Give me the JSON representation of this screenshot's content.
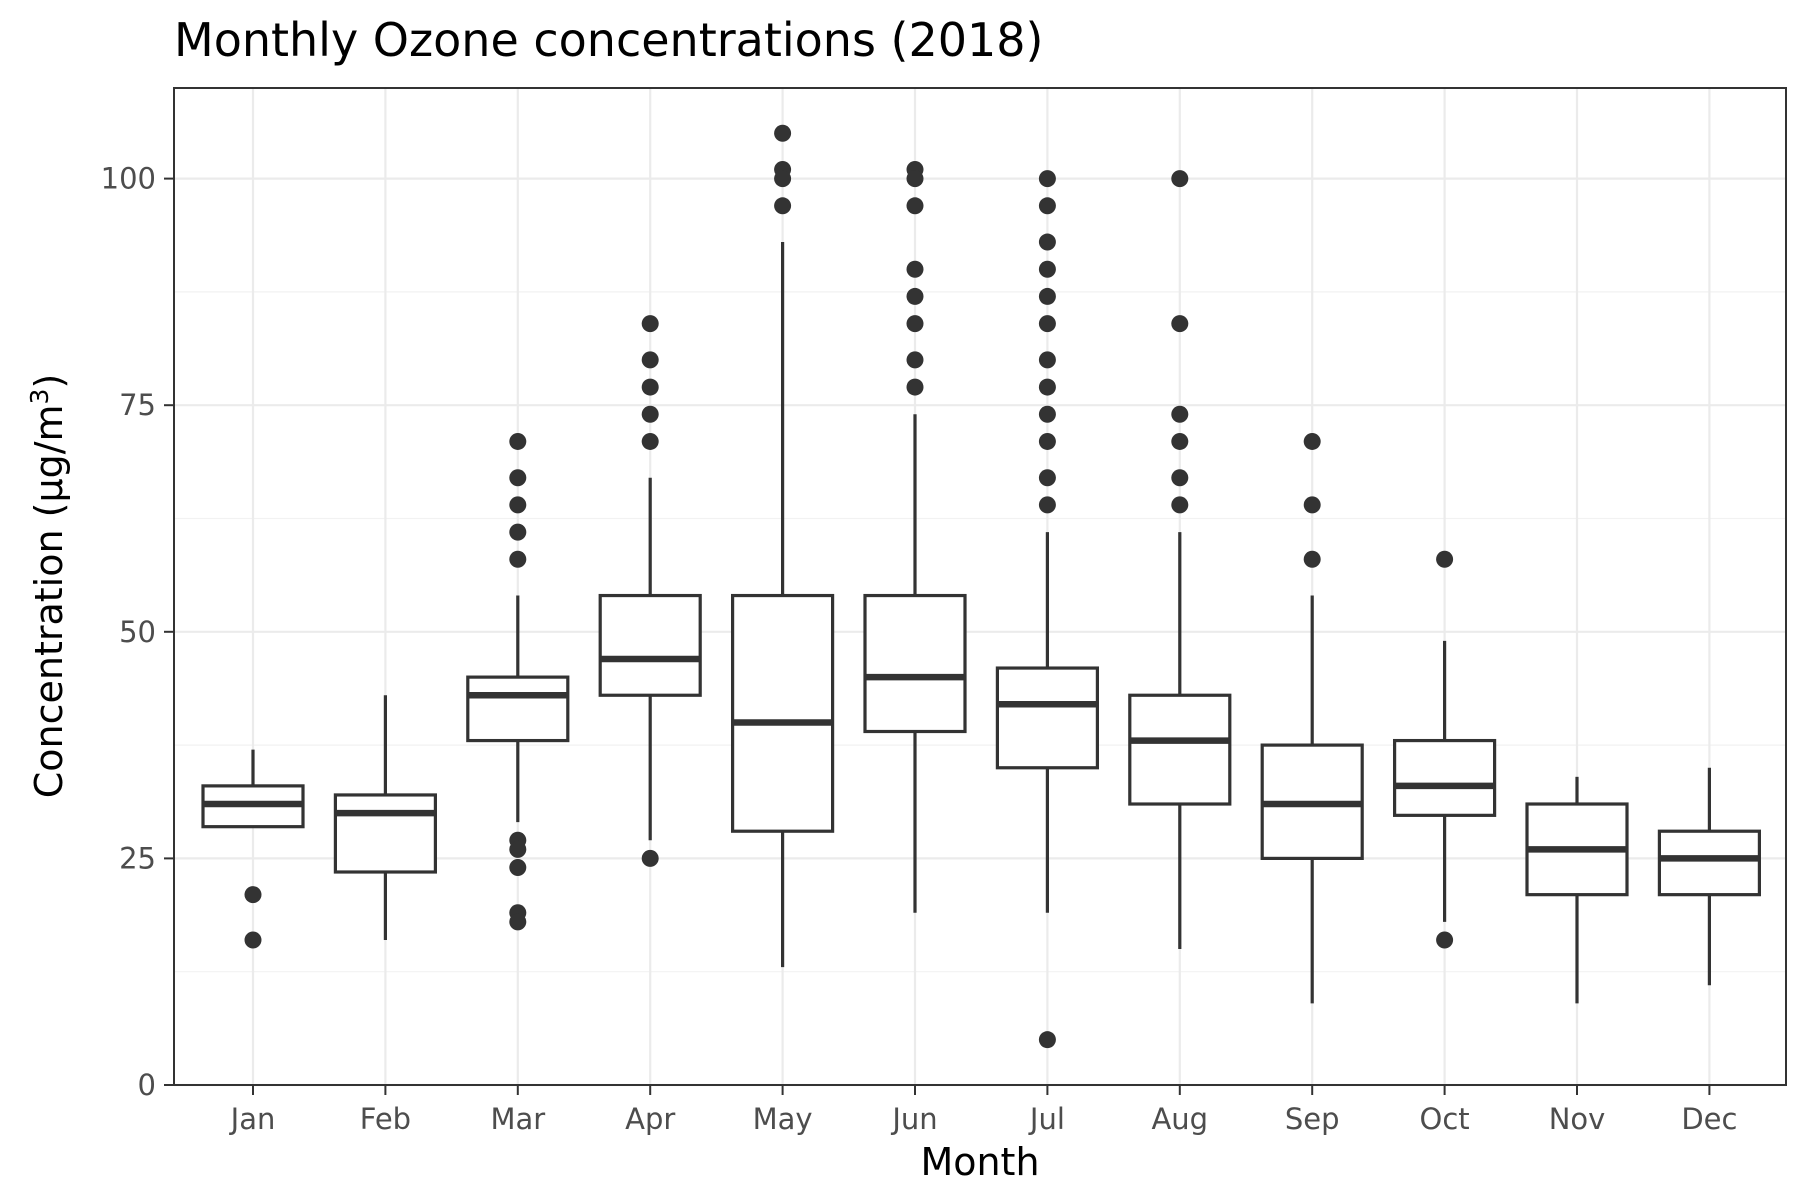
{
  "chart_data": {
    "type": "boxplot",
    "title": "Monthly Ozone concentrations (2018)",
    "xlabel": "Month",
    "ylabel": "Concentration (µg/m",
    "ylabel_superscript": "3",
    "ylabel_close": ")",
    "ylim": [
      0,
      110
    ],
    "yticks": [
      0,
      25,
      50,
      75,
      100
    ],
    "grid": true,
    "categories": [
      "Jan",
      "Feb",
      "Mar",
      "Apr",
      "May",
      "Jun",
      "Jul",
      "Aug",
      "Sep",
      "Oct",
      "Nov",
      "Dec"
    ],
    "boxes": [
      {
        "month": "Jan",
        "whisker_low": 28.5,
        "q1": 28.5,
        "median": 31,
        "q3": 33,
        "whisker_high": 37,
        "outliers": [
          21,
          16
        ]
      },
      {
        "month": "Feb",
        "whisker_low": 16,
        "q1": 23.5,
        "median": 30,
        "q3": 32,
        "whisker_high": 43,
        "outliers": []
      },
      {
        "month": "Mar",
        "whisker_low": 29,
        "q1": 38,
        "median": 43,
        "q3": 45,
        "whisker_high": 54,
        "outliers": [
          71,
          67,
          64,
          61,
          58,
          27,
          26,
          24,
          19,
          18
        ]
      },
      {
        "month": "Apr",
        "whisker_low": 27,
        "q1": 43,
        "median": 47,
        "q3": 54,
        "whisker_high": 67,
        "outliers": [
          84,
          80,
          77,
          74,
          71,
          25
        ]
      },
      {
        "month": "May",
        "whisker_low": 13,
        "q1": 28,
        "median": 40,
        "q3": 54,
        "whisker_high": 93,
        "outliers": [
          105,
          101,
          100,
          97
        ]
      },
      {
        "month": "Jun",
        "whisker_low": 19,
        "q1": 39,
        "median": 45,
        "q3": 54,
        "whisker_high": 74,
        "outliers": [
          101,
          100,
          97,
          90,
          87,
          84,
          80,
          77
        ]
      },
      {
        "month": "Jul",
        "whisker_low": 19,
        "q1": 35,
        "median": 42,
        "q3": 46,
        "whisker_high": 61,
        "outliers": [
          100,
          97,
          93,
          90,
          87,
          84,
          80,
          77,
          74,
          71,
          67,
          64,
          5
        ]
      },
      {
        "month": "Aug",
        "whisker_low": 15,
        "q1": 31,
        "median": 38,
        "q3": 43,
        "whisker_high": 61,
        "outliers": [
          100,
          84,
          74,
          71,
          67,
          64
        ]
      },
      {
        "month": "Sep",
        "whisker_low": 9,
        "q1": 25,
        "median": 31,
        "q3": 37.5,
        "whisker_high": 54,
        "outliers": [
          71,
          64,
          58
        ]
      },
      {
        "month": "Oct",
        "whisker_low": 18,
        "q1": 29.75,
        "median": 33,
        "q3": 38,
        "whisker_high": 49,
        "outliers": [
          58,
          16
        ]
      },
      {
        "month": "Nov",
        "whisker_low": 9,
        "q1": 21,
        "median": 26,
        "q3": 31,
        "whisker_high": 34,
        "outliers": []
      },
      {
        "month": "Dec",
        "whisker_low": 11,
        "q1": 21,
        "median": 25,
        "q3": 28,
        "whisker_high": 35,
        "outliers": []
      }
    ]
  }
}
